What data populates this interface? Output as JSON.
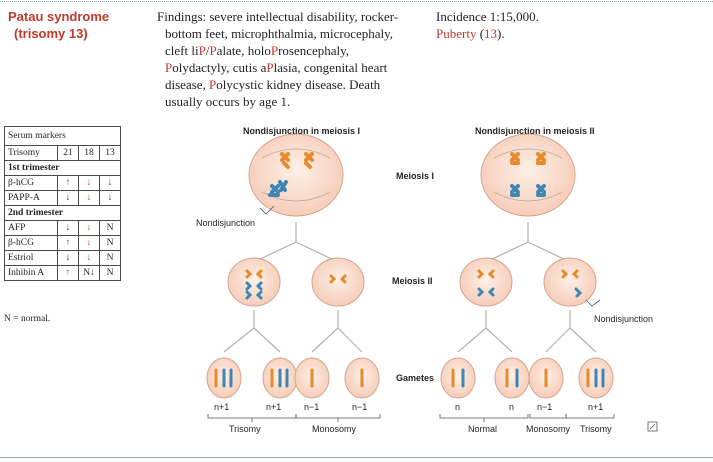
{
  "heading": {
    "line1": "Patau syndrome",
    "line2": "(trisomy 13)"
  },
  "findings": {
    "lines": [
      "Findings: severe intellectual disability, rocker-",
      "bottom feet, microphthalmia, microcephaly,",
      "cleft liP/Palate, holoProsencephaly,",
      "Polydactyly, cutis aPlasia, congenital heart",
      "disease, Polycystic kidney disease. Death",
      "usually occurs by age 1."
    ]
  },
  "incidence": {
    "line1": "Incidence 1:15,000.",
    "line2": "Puberty (13)."
  },
  "table": {
    "title": "Serum markers",
    "header": [
      "Trisomy",
      "21",
      "18",
      "13"
    ],
    "section1": "1st trimester",
    "rows1": [
      {
        "label": "β-hCG",
        "v": [
          "↑",
          "↓",
          "↓"
        ]
      },
      {
        "label": "PAPP-A",
        "v": [
          "↓",
          "↓",
          "↓"
        ]
      }
    ],
    "section2": "2nd trimester",
    "rows2": [
      {
        "label": "AFP",
        "v": [
          "↓",
          "↓",
          "N"
        ]
      },
      {
        "label": "β-hCG",
        "v": [
          "↑",
          "↓",
          "N"
        ]
      },
      {
        "label": "Estriol",
        "v": [
          "↓",
          "↓",
          "N"
        ]
      },
      {
        "label": "Inhibin A",
        "v": [
          "↑",
          "N↓",
          "N"
        ]
      }
    ],
    "note": "N = normal."
  },
  "diagram": {
    "title_left": "Nondisjunction in meiosis I",
    "title_right": "Nondisjunction in meiosis II",
    "meiosis1": "Meiosis I",
    "meiosis2": "Meiosis II",
    "gametes": "Gametes",
    "nondisjunction": "Nondisjunction",
    "gamete_labels": [
      "n+1",
      "n+1",
      "n−1",
      "n−1",
      "n",
      "n",
      "n−1",
      "n+1"
    ],
    "group_labels": [
      "Trisomy",
      "Monosomy",
      "Normal",
      "Monosomy",
      "Trisomy"
    ]
  },
  "colors": {
    "accent_red": "#c0392b",
    "chrom_orange": "#e88a2c",
    "chrom_blue": "#3f86b3",
    "cell_fill": "#f9dccd"
  }
}
